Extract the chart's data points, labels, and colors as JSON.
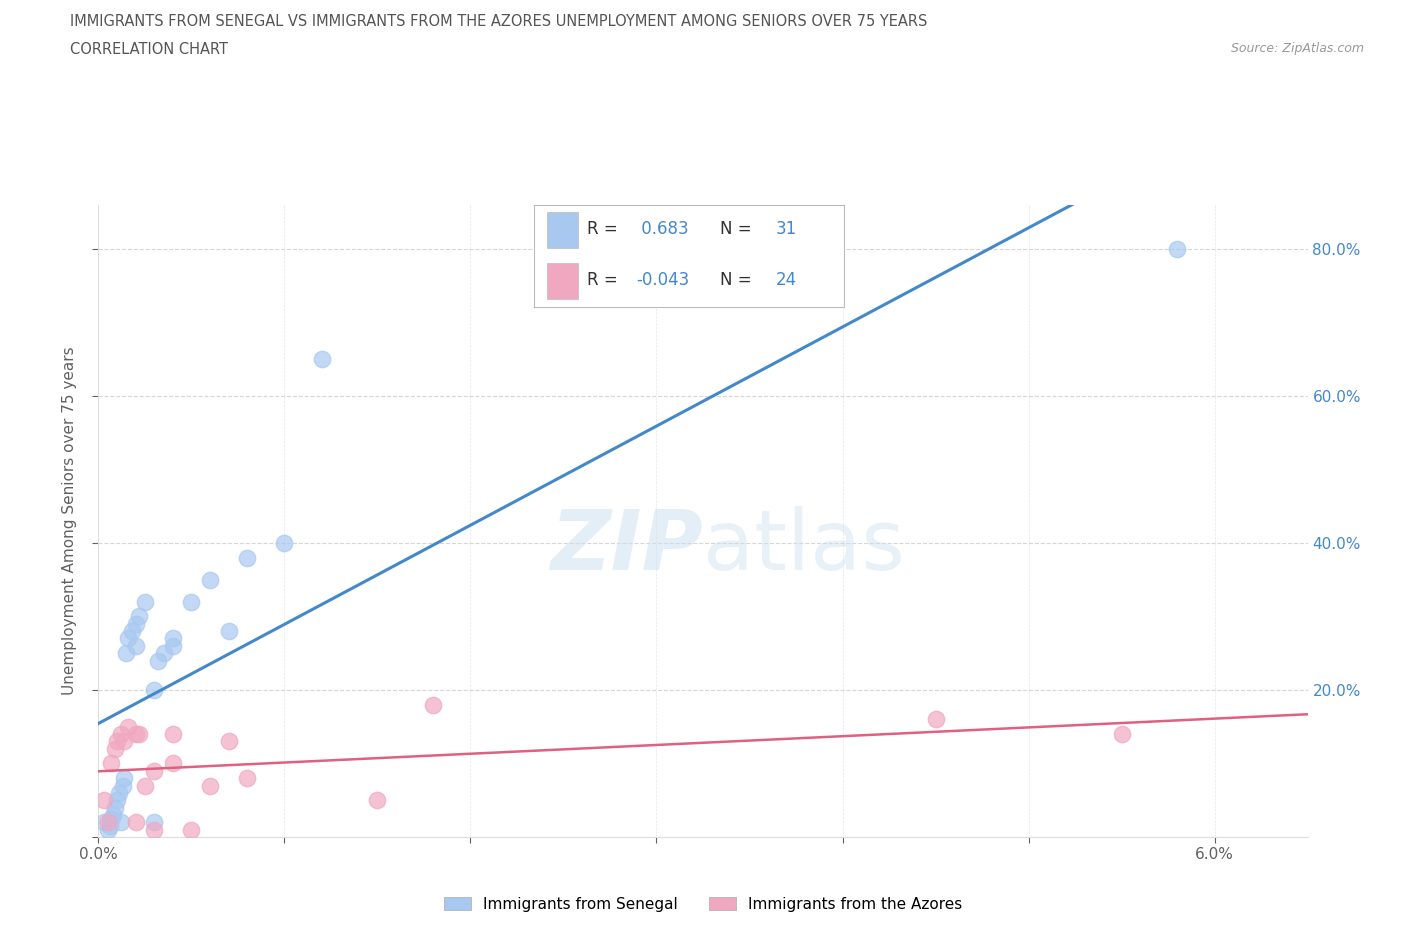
{
  "title_line1": "IMMIGRANTS FROM SENEGAL VS IMMIGRANTS FROM THE AZORES UNEMPLOYMENT AMONG SENIORS OVER 75 YEARS",
  "title_line2": "CORRELATION CHART",
  "source_text": "Source: ZipAtlas.com",
  "ylabel": "Unemployment Among Seniors over 75 years",
  "xlim": [
    0.0,
    0.065
  ],
  "ylim": [
    0.0,
    0.86
  ],
  "watermark_zip": "ZIP",
  "watermark_atlas": "atlas",
  "senegal_color": "#a8c8f0",
  "azores_color": "#f0a8c0",
  "senegal_line_color": "#4488cc",
  "azores_line_color": "#e06080",
  "senegal_R": 0.683,
  "senegal_N": 31,
  "azores_R": -0.043,
  "azores_N": 24,
  "senegal_x": [
    0.0003,
    0.0005,
    0.0006,
    0.0007,
    0.0008,
    0.0009,
    0.001,
    0.0011,
    0.0012,
    0.0013,
    0.0014,
    0.0015,
    0.0016,
    0.0018,
    0.002,
    0.002,
    0.0022,
    0.0025,
    0.003,
    0.003,
    0.0032,
    0.0035,
    0.004,
    0.004,
    0.005,
    0.006,
    0.007,
    0.008,
    0.01,
    0.012,
    0.058
  ],
  "senegal_y": [
    0.02,
    0.01,
    0.015,
    0.025,
    0.03,
    0.04,
    0.05,
    0.06,
    0.02,
    0.07,
    0.08,
    0.25,
    0.27,
    0.28,
    0.26,
    0.29,
    0.3,
    0.32,
    0.02,
    0.2,
    0.24,
    0.25,
    0.26,
    0.27,
    0.32,
    0.35,
    0.28,
    0.38,
    0.4,
    0.65,
    0.8
  ],
  "azores_x": [
    0.0003,
    0.0005,
    0.0007,
    0.0009,
    0.001,
    0.0012,
    0.0014,
    0.0016,
    0.002,
    0.002,
    0.0022,
    0.0025,
    0.003,
    0.003,
    0.004,
    0.004,
    0.005,
    0.006,
    0.007,
    0.008,
    0.015,
    0.018,
    0.045,
    0.055
  ],
  "azores_y": [
    0.05,
    0.02,
    0.1,
    0.12,
    0.13,
    0.14,
    0.13,
    0.15,
    0.02,
    0.14,
    0.14,
    0.07,
    0.01,
    0.09,
    0.14,
    0.1,
    0.01,
    0.07,
    0.13,
    0.08,
    0.05,
    0.18,
    0.16,
    0.14
  ],
  "background_color": "#ffffff",
  "grid_color": "#cccccc",
  "title_color": "#555555",
  "axis_color": "#606060",
  "right_axis_color": "#4488cc"
}
